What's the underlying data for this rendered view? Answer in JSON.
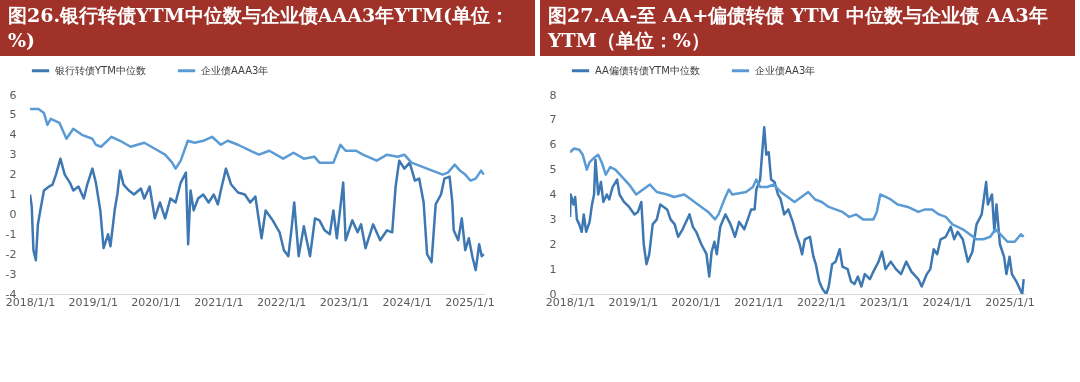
{
  "chart_data": [
    {
      "type": "line",
      "title": "图26.银行转债YTM中位数与企业债AAA3年YTM(单位：%)",
      "legend": "top",
      "grid": false,
      "xlim": [
        "2018-01-01",
        "2025-04-01"
      ],
      "xticks": [
        {
          "value": "2018-01-01",
          "label": "2018/1/1"
        },
        {
          "value": "2019-01-01",
          "label": "2019/1/1"
        },
        {
          "value": "2020-01-01",
          "label": "2020/1/1"
        },
        {
          "value": "2021-01-01",
          "label": "2021/1/1"
        },
        {
          "value": "2022-01-01",
          "label": "2022/1/1"
        },
        {
          "value": "2023-01-01",
          "label": "2023/1/1"
        },
        {
          "value": "2024-01-01",
          "label": "2024/1/1"
        },
        {
          "value": "2025-01-01",
          "label": "2025/1/1"
        }
      ],
      "ylim": [
        -4,
        6
      ],
      "yticks": [
        -4,
        -3,
        -2,
        -1,
        0,
        1,
        2,
        3,
        4,
        5,
        6
      ],
      "series": [
        {
          "name": "银行转债YTM中位数",
          "color": "#3e78b2",
          "x": [
            "2018-01-01",
            "2018-01-11",
            "2018-01-21",
            "2018-02-04",
            "2018-02-16",
            "2018-03-02",
            "2018-03-23",
            "2018-04-22",
            "2018-05-12",
            "2018-06-01",
            "2018-06-27",
            "2018-07-22",
            "2018-08-21",
            "2018-09-10",
            "2018-10-10",
            "2018-11-10",
            "2018-11-30",
            "2018-12-30",
            "2019-01-19",
            "2019-02-14",
            "2019-03-05",
            "2019-03-31",
            "2019-04-14",
            "2019-05-10",
            "2019-05-24",
            "2019-06-09",
            "2019-06-29",
            "2019-07-30",
            "2019-08-29",
            "2019-10-08",
            "2019-10-28",
            "2019-11-28",
            "2019-12-28",
            "2020-01-27",
            "2020-02-26",
            "2020-03-28",
            "2020-04-27",
            "2020-05-27",
            "2020-06-26",
            "2020-07-09",
            "2020-07-23",
            "2020-08-10",
            "2020-09-05",
            "2020-10-05",
            "2020-11-05",
            "2020-12-05",
            "2020-12-29",
            "2021-01-15",
            "2021-02-14",
            "2021-03-16",
            "2021-04-25",
            "2021-06-04",
            "2021-07-05",
            "2021-08-04",
            "2021-09-09",
            "2021-10-03",
            "2021-11-13",
            "2021-12-23",
            "2022-01-17",
            "2022-02-12",
            "2022-03-04",
            "2022-03-18",
            "2022-04-13",
            "2022-05-13",
            "2022-06-18",
            "2022-07-17",
            "2022-08-12",
            "2022-09-11",
            "2022-10-11",
            "2022-11-01",
            "2022-11-21",
            "2022-12-28",
            "2023-01-11",
            "2023-02-19",
            "2023-03-22",
            "2023-04-11",
            "2023-05-07",
            "2023-06-20",
            "2023-07-31",
            "2023-09-09",
            "2023-10-09",
            "2023-10-29",
            "2023-11-19",
            "2023-12-19",
            "2024-01-19",
            "2024-02-18",
            "2024-03-14",
            "2024-04-09",
            "2024-04-29",
            "2024-05-25",
            "2024-06-18",
            "2024-07-19",
            "2024-08-08",
            "2024-09-07",
            "2024-09-23",
            "2024-10-01",
            "2024-10-27",
            "2024-11-17",
            "2024-12-07",
            "2024-12-28",
            "2025-01-17",
            "2025-02-06",
            "2025-02-26",
            "2025-03-13",
            "2025-03-25"
          ],
          "values": [
            1.0,
            0.4,
            -1.8,
            -2.3,
            -0.5,
            0.2,
            1.2,
            1.4,
            1.5,
            2.0,
            2.8,
            2.0,
            1.6,
            1.2,
            1.4,
            0.8,
            1.5,
            2.3,
            1.6,
            0.2,
            -1.7,
            -1.0,
            -1.6,
            0.3,
            1.0,
            2.2,
            1.5,
            1.2,
            1.0,
            1.3,
            0.8,
            1.4,
            -0.2,
            0.6,
            -0.2,
            0.8,
            0.6,
            1.6,
            2.1,
            -1.5,
            1.2,
            0.2,
            0.8,
            1.0,
            0.6,
            1.0,
            0.5,
            1.2,
            2.3,
            1.5,
            1.1,
            1.0,
            0.6,
            0.9,
            -1.2,
            0.2,
            -0.3,
            -0.9,
            -1.8,
            -2.1,
            -0.6,
            0.6,
            -2.1,
            -0.6,
            -2.1,
            -0.2,
            -0.3,
            -0.8,
            -1.0,
            0.2,
            -1.2,
            1.6,
            -1.3,
            -0.3,
            -0.9,
            -0.5,
            -1.7,
            -0.5,
            -1.3,
            -0.8,
            -0.9,
            1.4,
            2.7,
            2.3,
            2.6,
            1.7,
            1.8,
            0.6,
            -2.0,
            -2.4,
            0.5,
            1.0,
            1.8,
            1.9,
            0.6,
            -0.8,
            -1.3,
            -0.2,
            -1.8,
            -1.2,
            -2.1,
            -2.8,
            -1.5,
            -2.1,
            -2.0
          ]
        },
        {
          "name": "企业债AAA3年",
          "color": "#5b9bd5",
          "x": [
            "2018-01-01",
            "2018-02-20",
            "2018-03-23",
            "2018-04-12",
            "2018-05-02",
            "2018-06-21",
            "2018-08-01",
            "2018-09-10",
            "2018-10-30",
            "2018-12-30",
            "2019-01-19",
            "2019-02-18",
            "2019-04-20",
            "2019-06-09",
            "2019-08-09",
            "2019-10-28",
            "2019-12-28",
            "2020-02-26",
            "2020-04-07",
            "2020-04-27",
            "2020-05-27",
            "2020-07-07",
            "2020-08-16",
            "2020-10-05",
            "2020-11-25",
            "2021-01-15",
            "2021-02-24",
            "2021-04-25",
            "2021-07-05",
            "2021-08-25",
            "2021-10-24",
            "2022-01-13",
            "2022-03-14",
            "2022-05-13",
            "2022-07-13",
            "2022-08-12",
            "2022-11-01",
            "2022-12-12",
            "2023-01-11",
            "2023-03-13",
            "2023-04-22",
            "2023-07-11",
            "2023-09-09",
            "2023-11-09",
            "2023-12-19",
            "2024-01-29",
            "2024-03-30",
            "2024-05-29",
            "2024-07-29",
            "2024-08-28",
            "2024-10-07",
            "2024-11-06",
            "2024-12-07",
            "2025-01-07",
            "2025-02-06",
            "2025-03-09",
            "2025-03-25"
          ],
          "values": [
            5.3,
            5.3,
            5.1,
            4.5,
            4.8,
            4.6,
            3.8,
            4.3,
            4.0,
            3.8,
            3.5,
            3.4,
            3.9,
            3.7,
            3.4,
            3.6,
            3.3,
            3.0,
            2.6,
            2.3,
            2.7,
            3.7,
            3.6,
            3.7,
            3.9,
            3.5,
            3.7,
            3.5,
            3.2,
            3.0,
            3.2,
            2.8,
            3.1,
            2.8,
            2.9,
            2.6,
            2.6,
            3.5,
            3.2,
            3.2,
            3.0,
            2.7,
            3.0,
            2.9,
            3.0,
            2.6,
            2.4,
            2.2,
            2.0,
            2.1,
            2.5,
            2.2,
            2.0,
            1.7,
            1.8,
            2.2,
            2.0
          ]
        }
      ]
    },
    {
      "type": "line",
      "title": "图27.AA-至 AA+偏债转债 YTM 中位数与企业债 AA3年 YTM（单位：%）",
      "legend": "top",
      "grid": false,
      "xlim": [
        "2018-01-01",
        "2025-04-01"
      ],
      "xticks": [
        {
          "value": "2018-01-01",
          "label": "2018/1/1"
        },
        {
          "value": "2019-01-01",
          "label": "2019/1/1"
        },
        {
          "value": "2020-01-01",
          "label": "2020/1/1"
        },
        {
          "value": "2021-01-01",
          "label": "2021/1/1"
        },
        {
          "value": "2022-01-01",
          "label": "2022/1/1"
        },
        {
          "value": "2023-01-01",
          "label": "2023/1/1"
        },
        {
          "value": "2024-01-01",
          "label": "2024/1/1"
        },
        {
          "value": "2025-01-01",
          "label": "2025/1/1"
        }
      ],
      "ylim": [
        0,
        8
      ],
      "yticks": [
        0,
        1,
        2,
        3,
        4,
        5,
        6,
        7,
        8
      ],
      "series": [
        {
          "name": "AA偏债转债YTM中位数",
          "color": "#3e78b2",
          "x": [
            "2018-01-01",
            "2018-01-05",
            "2018-01-21",
            "2018-01-31",
            "2018-02-10",
            "2018-02-24",
            "2018-03-10",
            "2018-03-22",
            "2018-04-05",
            "2018-04-25",
            "2018-05-09",
            "2018-05-21",
            "2018-05-29",
            "2018-06-14",
            "2018-06-30",
            "2018-07-14",
            "2018-08-03",
            "2018-08-17",
            "2018-09-06",
            "2018-10-02",
            "2018-10-16",
            "2018-11-11",
            "2018-12-11",
            "2019-01-11",
            "2019-01-31",
            "2019-02-20",
            "2019-03-06",
            "2019-03-22",
            "2019-04-07",
            "2019-04-27",
            "2019-05-21",
            "2019-06-10",
            "2019-06-30",
            "2019-07-20",
            "2019-08-09",
            "2019-09-02",
            "2019-09-22",
            "2019-10-18",
            "2019-11-27",
            "2019-12-17",
            "2020-01-05",
            "2020-02-04",
            "2020-03-05",
            "2020-03-21",
            "2020-04-04",
            "2020-04-20",
            "2020-05-04",
            "2020-05-24",
            "2020-06-23",
            "2020-07-23",
            "2020-08-18",
            "2020-09-11",
            "2020-10-11",
            "2020-10-31",
            "2020-11-20",
            "2020-12-10",
            "2020-12-20",
            "2021-01-11",
            "2021-01-21",
            "2021-02-04",
            "2021-02-16",
            "2021-03-02",
            "2021-03-16",
            "2021-04-05",
            "2021-04-25",
            "2021-05-11",
            "2021-05-31",
            "2021-06-24",
            "2021-07-20",
            "2021-08-09",
            "2021-08-29",
            "2021-09-12",
            "2021-09-28",
            "2021-10-28",
            "2021-11-17",
            "2021-12-01",
            "2021-12-21",
            "2022-01-09",
            "2022-01-31",
            "2022-02-14",
            "2022-03-06",
            "2022-03-26",
            "2022-04-19",
            "2022-05-05",
            "2022-06-04",
            "2022-06-24",
            "2022-07-14",
            "2022-08-03",
            "2022-08-23",
            "2022-09-12",
            "2022-10-12",
            "2022-11-01",
            "2022-12-01",
            "2022-12-21",
            "2023-01-11",
            "2023-02-10",
            "2023-03-12",
            "2023-04-11",
            "2023-05-11",
            "2023-06-10",
            "2023-07-20",
            "2023-08-09",
            "2023-09-08",
            "2023-09-28",
            "2023-10-18",
            "2023-11-07",
            "2023-11-27",
            "2023-12-27",
            "2024-01-25",
            "2024-02-14",
            "2024-03-05",
            "2024-04-04",
            "2024-05-04",
            "2024-05-30",
            "2024-06-23",
            "2024-07-23",
            "2024-08-18",
            "2024-08-28",
            "2024-09-21",
            "2024-10-05",
            "2024-10-17",
            "2024-11-06",
            "2024-11-30",
            "2024-12-14",
            "2025-01-01",
            "2025-01-15",
            "2025-02-10",
            "2025-03-02",
            "2025-03-16",
            "2025-03-24"
          ],
          "values": [
            3.1,
            4.0,
            3.6,
            3.9,
            3.0,
            2.8,
            2.5,
            3.2,
            2.5,
            2.9,
            3.6,
            4.0,
            5.4,
            4.0,
            4.5,
            3.7,
            4.0,
            3.8,
            4.3,
            4.6,
            4.0,
            3.7,
            3.5,
            3.2,
            3.3,
            3.7,
            2.0,
            1.2,
            1.6,
            2.8,
            3.0,
            3.6,
            3.5,
            3.4,
            3.0,
            2.8,
            2.3,
            2.6,
            3.2,
            2.7,
            2.5,
            2.0,
            1.6,
            0.7,
            1.7,
            2.1,
            1.6,
            2.7,
            3.2,
            2.8,
            2.3,
            2.9,
            2.6,
            3.0,
            3.4,
            3.4,
            4.2,
            4.6,
            5.5,
            6.7,
            5.6,
            5.7,
            4.6,
            4.5,
            4.0,
            3.8,
            3.2,
            3.4,
            2.9,
            2.4,
            2.0,
            1.6,
            2.2,
            2.3,
            1.5,
            1.2,
            0.5,
            0.2,
            0.0,
            0.3,
            1.2,
            1.3,
            1.8,
            1.1,
            1.0,
            0.5,
            0.4,
            0.7,
            0.3,
            0.8,
            0.6,
            0.9,
            1.3,
            1.7,
            1.0,
            1.3,
            1.0,
            0.8,
            1.3,
            0.9,
            0.6,
            0.3,
            0.8,
            1.0,
            1.8,
            1.6,
            2.2,
            2.3,
            2.7,
            2.2,
            2.5,
            2.2,
            1.3,
            1.7,
            2.8,
            3.2,
            4.5,
            3.6,
            4.0,
            2.5,
            3.6,
            2.0,
            1.5,
            0.8,
            1.5,
            0.8,
            0.5,
            0.2,
            0.0,
            0.6
          ]
        },
        {
          "name": "企业债AA3年",
          "color": "#5b9bd5",
          "x": [
            "2018-01-01",
            "2018-01-25",
            "2018-02-24",
            "2018-03-16",
            "2018-04-09",
            "2018-04-25",
            "2018-05-25",
            "2018-06-14",
            "2018-07-04",
            "2018-07-28",
            "2018-08-23",
            "2018-09-22",
            "2018-11-01",
            "2018-12-11",
            "2019-01-21",
            "2019-03-02",
            "2019-04-11",
            "2019-05-21",
            "2019-07-20",
            "2019-08-29",
            "2019-10-28",
            "2019-12-07",
            "2020-02-04",
            "2020-03-15",
            "2020-04-24",
            "2020-05-14",
            "2020-06-23",
            "2020-07-13",
            "2020-08-02",
            "2020-10-21",
            "2020-11-30",
            "2020-12-20",
            "2021-01-11",
            "2021-02-20",
            "2021-04-01",
            "2021-05-11",
            "2021-06-20",
            "2021-07-30",
            "2021-09-08",
            "2021-10-18",
            "2021-11-27",
            "2022-01-05",
            "2022-02-14",
            "2022-03-26",
            "2022-05-05",
            "2022-06-14",
            "2022-07-24",
            "2022-09-02",
            "2022-11-01",
            "2022-11-21",
            "2022-12-11",
            "2023-01-11",
            "2023-02-10",
            "2023-03-22",
            "2023-05-21",
            "2023-07-20",
            "2023-08-29",
            "2023-10-08",
            "2023-11-17",
            "2023-12-27",
            "2024-02-04",
            "2024-04-04",
            "2024-05-14",
            "2024-06-23",
            "2024-08-02",
            "2024-09-11",
            "2024-10-11",
            "2024-11-10",
            "2024-12-20",
            "2025-01-31",
            "2025-03-08",
            "2025-03-24"
          ],
          "values": [
            5.7,
            5.85,
            5.8,
            5.6,
            5.0,
            5.3,
            5.5,
            5.6,
            5.3,
            4.8,
            5.1,
            5.0,
            4.7,
            4.4,
            4.0,
            4.2,
            4.4,
            4.1,
            4.0,
            3.9,
            4.0,
            3.8,
            3.5,
            3.3,
            3.0,
            3.2,
            3.9,
            4.2,
            4.0,
            4.1,
            4.3,
            4.6,
            4.3,
            4.3,
            4.4,
            4.1,
            3.9,
            3.7,
            3.9,
            4.1,
            3.8,
            3.7,
            3.5,
            3.4,
            3.3,
            3.1,
            3.2,
            3.0,
            3.0,
            3.3,
            4.0,
            3.9,
            3.8,
            3.6,
            3.5,
            3.3,
            3.4,
            3.4,
            3.2,
            3.1,
            2.8,
            2.6,
            2.4,
            2.2,
            2.2,
            2.3,
            2.6,
            2.4,
            2.1,
            2.1,
            2.4,
            2.3
          ]
        }
      ]
    }
  ]
}
